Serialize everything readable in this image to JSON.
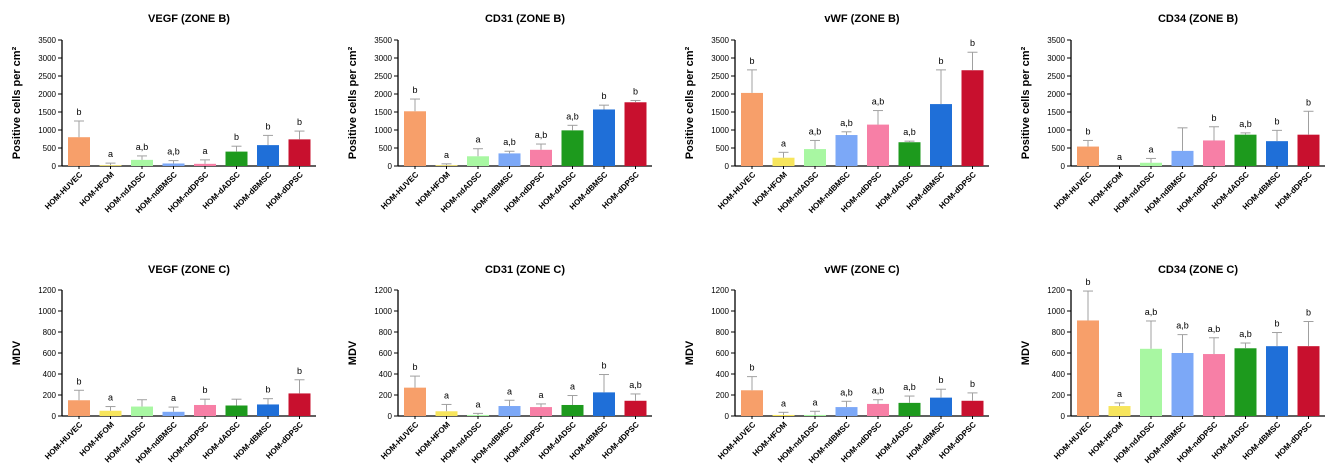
{
  "chart_data": [
    {
      "type": "bar",
      "title": "VEGF (ZONE B)",
      "ylabel": "Positive cells per cm²",
      "ylim": [
        0,
        3500
      ],
      "yticks": [
        0,
        500,
        1000,
        1500,
        2000,
        2500,
        3000,
        3500
      ],
      "categories": [
        "HOM-HUVEC",
        "HOM-HFOM",
        "HOM-ndADSC",
        "HOM-ndBMSC",
        "HOM-ndDPSC",
        "HOM-dADSC",
        "HOM-dBMSC",
        "HOM-dDPSC"
      ],
      "values": [
        800,
        20,
        170,
        70,
        60,
        400,
        580,
        740
      ],
      "errors": [
        450,
        60,
        110,
        80,
        110,
        150,
        270,
        230
      ],
      "labels": [
        "b",
        "a",
        "a,b",
        "a,b",
        "a",
        "b",
        "b",
        "b"
      ]
    },
    {
      "type": "bar",
      "title": "CD31 (ZONE B)",
      "ylabel": "Positive cells per cm²",
      "ylim": [
        0,
        3500
      ],
      "yticks": [
        0,
        500,
        1000,
        1500,
        2000,
        2500,
        3000,
        3500
      ],
      "categories": [
        "HOM-HUVEC",
        "HOM-HFOM",
        "HOM-ndADSC",
        "HOM-ndBMSC",
        "HOM-ndDPSC",
        "HOM-dADSC",
        "HOM-dBMSC",
        "HOM-dDPSC"
      ],
      "values": [
        1520,
        20,
        270,
        350,
        450,
        990,
        1570,
        1770
      ],
      "errors": [
        340,
        40,
        210,
        60,
        160,
        140,
        120,
        50
      ],
      "labels": [
        "b",
        "a",
        "a",
        "a,b",
        "a,b",
        "a,b",
        "b",
        "b"
      ]
    },
    {
      "type": "bar",
      "title": "vWF (ZONE B)",
      "ylabel": "Positive cells per cm²",
      "ylim": [
        0,
        3500
      ],
      "yticks": [
        0,
        500,
        1000,
        1500,
        2000,
        2500,
        3000,
        3500
      ],
      "categories": [
        "HOM-HUVEC",
        "HOM-HFOM",
        "HOM-ndADSC",
        "HOM-ndBMSC",
        "HOM-ndDPSC",
        "HOM-dADSC",
        "HOM-dBMSC",
        "HOM-dDPSC"
      ],
      "values": [
        2030,
        230,
        470,
        860,
        1150,
        660,
        1720,
        2660
      ],
      "errors": [
        640,
        150,
        240,
        90,
        390,
        30,
        950,
        500
      ],
      "labels": [
        "b",
        "a",
        "a,b",
        "a,b",
        "a,b",
        "a,b",
        "b",
        "b"
      ]
    },
    {
      "type": "bar",
      "title": "CD34 (ZONE B)",
      "ylabel": "Positive cells per cm²",
      "ylim": [
        0,
        3500
      ],
      "yticks": [
        0,
        500,
        1000,
        1500,
        2000,
        2500,
        3000,
        3500
      ],
      "categories": [
        "HOM-HUVEC",
        "HOM-HFOM",
        "HOM-ndADSC",
        "HOM-ndBMSC",
        "HOM-ndDPSC",
        "HOM-dADSC",
        "HOM-dBMSC",
        "HOM-dDPSC"
      ],
      "values": [
        540,
        0,
        90,
        420,
        710,
        870,
        690,
        870
      ],
      "errors": [
        170,
        0,
        120,
        640,
        380,
        50,
        300,
        650
      ],
      "labels": [
        "b",
        "a",
        "a",
        "",
        "b",
        "a,b",
        "b",
        "b"
      ]
    },
    {
      "type": "bar",
      "title": "VEGF (ZONE C)",
      "ylabel": "MDV",
      "ylim": [
        0,
        1200
      ],
      "yticks": [
        0,
        200,
        400,
        600,
        800,
        1000,
        1200
      ],
      "categories": [
        "HOM-HUVEC",
        "HOM-HFOM",
        "HOM-ndADSC",
        "HOM-ndBMSC",
        "HOM-ndDPSC",
        "HOM-dADSC",
        "HOM-dBMSC",
        "HOM-dDPSC"
      ],
      "values": [
        150,
        50,
        90,
        40,
        105,
        100,
        110,
        215
      ],
      "errors": [
        95,
        40,
        65,
        45,
        55,
        60,
        55,
        130
      ],
      "labels": [
        "b",
        "a",
        "",
        "a",
        "b",
        "",
        "b",
        "b"
      ]
    },
    {
      "type": "bar",
      "title": "CD31 (ZONE C)",
      "ylabel": "MDV",
      "ylim": [
        0,
        1200
      ],
      "yticks": [
        0,
        200,
        400,
        600,
        800,
        1000,
        1200
      ],
      "categories": [
        "HOM-HUVEC",
        "HOM-HFOM",
        "HOM-ndADSC",
        "HOM-ndBMSC",
        "HOM-ndDPSC",
        "HOM-dADSC",
        "HOM-dBMSC",
        "HOM-dDPSC"
      ],
      "values": [
        270,
        45,
        10,
        95,
        85,
        105,
        225,
        145
      ],
      "errors": [
        110,
        65,
        15,
        55,
        30,
        90,
        170,
        65
      ],
      "labels": [
        "b",
        "a",
        "a",
        "a",
        "a",
        "a",
        "b",
        "a,b"
      ]
    },
    {
      "type": "bar",
      "title": "vWF (ZONE C)",
      "ylabel": "MDV",
      "ylim": [
        0,
        1200
      ],
      "yticks": [
        0,
        200,
        400,
        600,
        800,
        1000,
        1200
      ],
      "categories": [
        "HOM-HUVEC",
        "HOM-HFOM",
        "HOM-ndADSC",
        "HOM-ndBMSC",
        "HOM-ndDPSC",
        "HOM-dADSC",
        "HOM-dBMSC",
        "HOM-dDPSC"
      ],
      "values": [
        245,
        10,
        10,
        85,
        115,
        125,
        175,
        145
      ],
      "errors": [
        130,
        25,
        35,
        55,
        40,
        65,
        80,
        75
      ],
      "labels": [
        "b",
        "a",
        "a",
        "a,b",
        "a,b",
        "a,b",
        "b",
        "b"
      ]
    },
    {
      "type": "bar",
      "title": "CD34 (ZONE C)",
      "ylabel": "MDV",
      "ylim": [
        0,
        1200
      ],
      "yticks": [
        0,
        200,
        400,
        600,
        800,
        1000,
        1200
      ],
      "categories": [
        "HOM-HUVEC",
        "HOM-HFOM",
        "HOM-ndADSC",
        "HOM-ndBMSC",
        "HOM-ndDPSC",
        "HOM-dADSC",
        "HOM-dBMSC",
        "HOM-dDPSC"
      ],
      "values": [
        910,
        95,
        640,
        600,
        590,
        645,
        665,
        665
      ],
      "errors": [
        280,
        30,
        265,
        175,
        155,
        50,
        130,
        235
      ],
      "labels": [
        "b",
        "a",
        "a,b",
        "a,b",
        "a,b",
        "a,b",
        "b",
        "b"
      ]
    }
  ],
  "bar_colors": [
    "#f79f6a",
    "#f7e55c",
    "#a8f7a2",
    "#7ca8f7",
    "#f77fa6",
    "#1d9a1d",
    "#1f6fd8",
    "#c8102e"
  ],
  "axis_color": "#000000",
  "error_bar_color": "#a0a0a0"
}
